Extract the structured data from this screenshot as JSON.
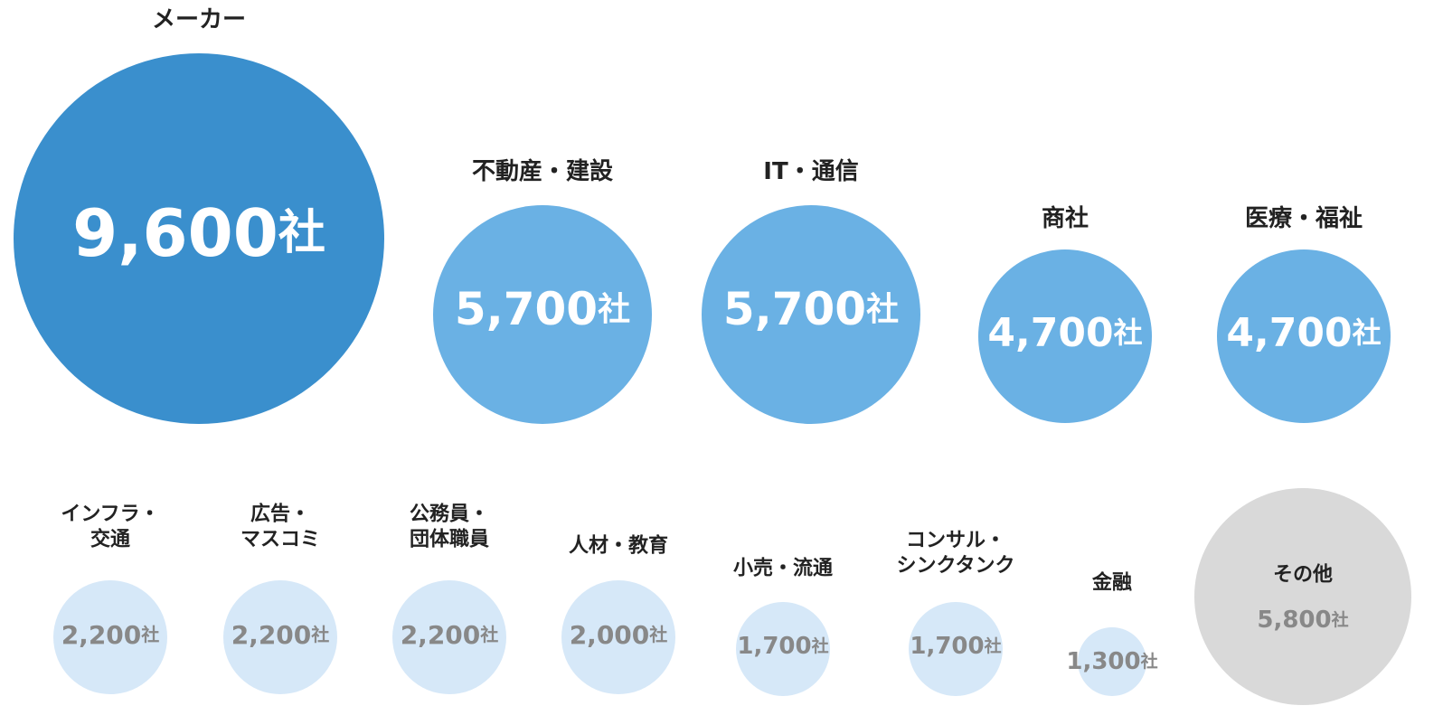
{
  "chart_data": {
    "type": "bubble",
    "unit": "社",
    "categories": [
      "メーカー",
      "不動産・建設",
      "IT・通信",
      "商社",
      "医療・福祉",
      "インフラ・\n交通",
      "広告・\nマスコミ",
      "公務員・\n団体職員",
      "人材・教育",
      "小売・流通",
      "コンサル・\nシンクタンク",
      "金融",
      "その他"
    ],
    "values": [
      9600,
      5700,
      5700,
      4700,
      4700,
      2200,
      2200,
      2200,
      2000,
      1700,
      1700,
      1300,
      5800
    ],
    "value_labels": [
      "9,600",
      "5,700",
      "5,700",
      "4,700",
      "4,700",
      "2,200",
      "2,200",
      "2,200",
      "2,000",
      "1,700",
      "1,700",
      "1,300",
      "5,800"
    ],
    "colors": [
      "#3a8fcd",
      "#6ab1e4",
      "#6ab1e4",
      "#6ab1e4",
      "#6ab1e4",
      "#d6e8f8",
      "#d6e8f8",
      "#d6e8f8",
      "#d6e8f8",
      "#d6e8f8",
      "#d6e8f8",
      "#d6e8f8",
      "#d9d9d9"
    ],
    "value_colors": [
      "#ffffff",
      "#ffffff",
      "#ffffff",
      "#ffffff",
      "#ffffff",
      "#888888",
      "#888888",
      "#888888",
      "#888888",
      "#888888",
      "#888888",
      "#888888",
      "#888888"
    ]
  }
}
